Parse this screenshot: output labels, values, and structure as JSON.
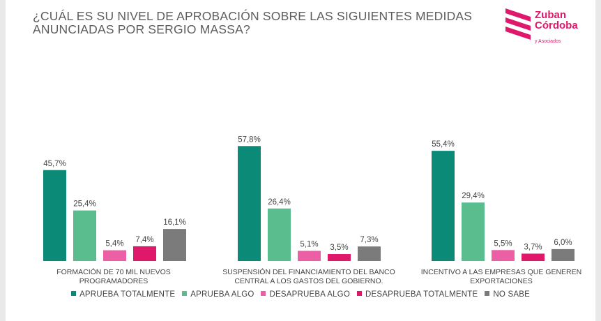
{
  "title": "¿CUÁL ES SU NIVEL DE APROBACIÓN SOBRE LAS SIGUIENTES MEDIDAS ANUNCIADAS POR SERGIO MASSA?",
  "logo": {
    "name": "Zuban Córdoba",
    "sub": "y Asociados",
    "color": "#e0186c"
  },
  "chart_data": {
    "type": "bar",
    "categories": [
      "FORMACIÓN DE 70 MIL NUEVOS PROGRAMADORES",
      "SUSPENSIÓN DEL FINANCIAMIENTO DEL BANCO CENTRAL A LOS GASTOS DEL GOBIERNO.",
      "INCENTIVO A LAS EMPRESAS QUE GENEREN EXPORTACIONES"
    ],
    "category_lines": [
      [
        "FORMACIÓN DE 70 MIL NUEVOS",
        "PROGRAMADORES"
      ],
      [
        "SUSPENSIÓN DEL FINANCIAMIENTO DEL BANCO",
        "CENTRAL A LOS GASTOS DEL GOBIERNO."
      ],
      [
        "INCENTIVO A LAS EMPRESAS QUE GENEREN",
        "EXPORTACIONES"
      ]
    ],
    "series": [
      {
        "name": "APRUEBA TOTALMENTE",
        "color": "#0c8a78",
        "values": [
          45.7,
          57.8,
          55.4
        ],
        "labels": [
          "45,7%",
          "57,8%",
          "55,4%"
        ]
      },
      {
        "name": "APRUEBA ALGO",
        "color": "#5abd8e",
        "values": [
          25.4,
          26.4,
          29.4
        ],
        "labels": [
          "25,4%",
          "26,4%",
          "29,4%"
        ]
      },
      {
        "name": "DESAPRUEBA ALGO",
        "color": "#ec5fa4",
        "values": [
          5.4,
          5.1,
          5.5
        ],
        "labels": [
          "5,4%",
          "5,1%",
          "5,5%"
        ]
      },
      {
        "name": "DESAPRUEBA TOTALMENTE",
        "color": "#e0186c",
        "values": [
          7.4,
          3.5,
          3.7
        ],
        "labels": [
          "7,4%",
          "3,5%",
          "3,7%"
        ]
      },
      {
        "name": "NO SABE",
        "color": "#7b7b7b",
        "values": [
          16.1,
          7.3,
          6.0
        ],
        "labels": [
          "16,1%",
          "7,3%",
          "6,0%"
        ]
      }
    ],
    "ylim": [
      0,
      60
    ],
    "grid": false,
    "legend_position": "bottom"
  }
}
